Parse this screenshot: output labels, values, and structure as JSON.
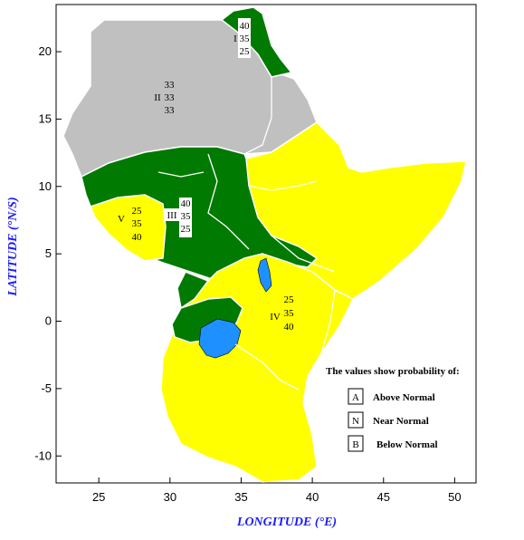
{
  "axes": {
    "xlabel": "LONGITUDE (°E)",
    "ylabel": "LATITUDE (°N/S)",
    "x_ticks": [
      "25",
      "30",
      "35",
      "40",
      "45",
      "50"
    ],
    "y_ticks": [
      "20",
      "15",
      "10",
      "5",
      "0",
      "-5",
      "-10"
    ],
    "x_range": [
      22,
      51.5
    ],
    "y_range": [
      -12,
      23.5
    ]
  },
  "colors": {
    "above_normal": "#ffff00",
    "near_normal": "#c0c0c0",
    "below_normal": "#007a00",
    "lake": "#1e90ff",
    "boundary": "#ffffff"
  },
  "zones": [
    {
      "id": "I",
      "values": [
        "40",
        "35",
        "25"
      ],
      "color": "#007a00"
    },
    {
      "id": "II",
      "values": [
        "33",
        "33",
        "33"
      ],
      "color": "#c0c0c0"
    },
    {
      "id": "III",
      "values": [
        "40",
        "35",
        "25"
      ],
      "color": "#007a00"
    },
    {
      "id": "IV",
      "values": [
        "25",
        "35",
        "40"
      ],
      "color": "#ffff00"
    },
    {
      "id": "V",
      "values": [
        "25",
        "35",
        "40"
      ],
      "color": "#ffff00"
    }
  ],
  "legend": {
    "title": "The values show probability of:",
    "items": [
      {
        "key": "A",
        "label": "Above Normal"
      },
      {
        "key": "N",
        "label": "Near Normal"
      },
      {
        "key": "B",
        "label": "Below Normal"
      }
    ]
  }
}
